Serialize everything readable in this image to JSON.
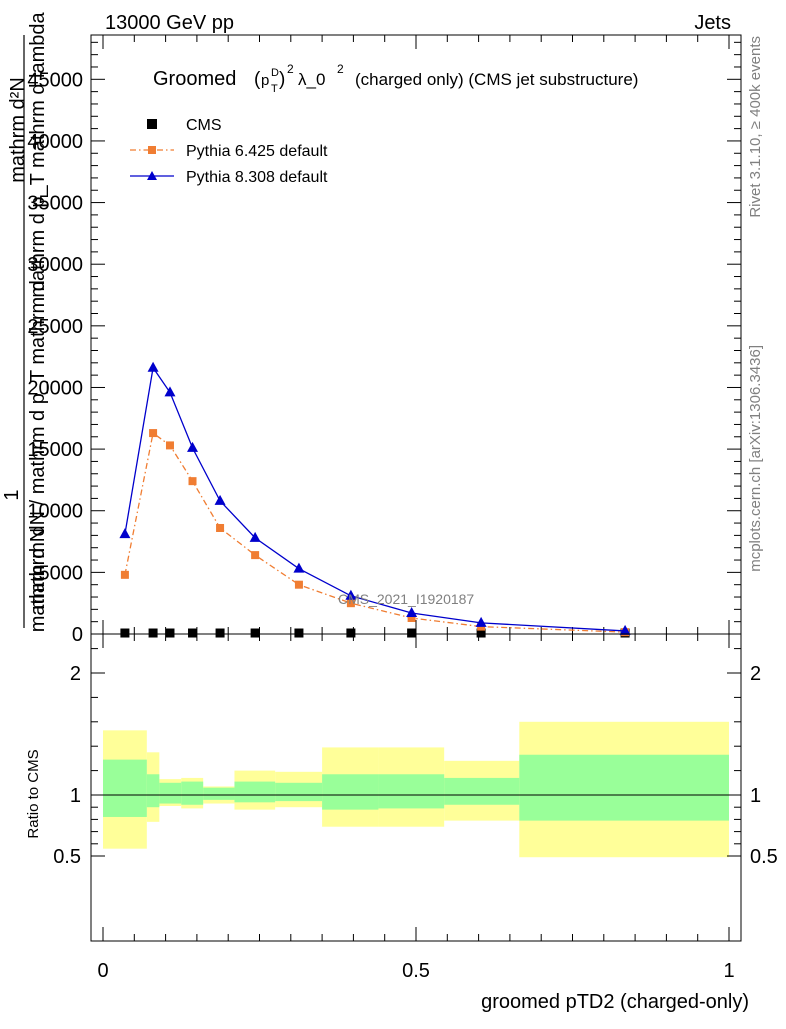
{
  "header": {
    "left": "13000 GeV pp",
    "right": "Jets"
  },
  "side": {
    "rivet": "Rivet 3.1.10, ≥ 400k events",
    "mcplots": "mcplots.cern.ch [arXiv:1306.3436]"
  },
  "plot": {
    "title_main": "Groomed",
    "title_rest": "λ_0",
    "title_tail": "(charged only) (CMS jet substructure)",
    "title_sup2": "2",
    "title_sup2b": "2",
    "title_p": "p",
    "title_T": "T",
    "title_D": "D",
    "watermark": "CMS_2021_I1920187",
    "ylabel_num": "mathrm d²N",
    "ylabel_num_b": "1",
    "ylabel_den_a": "mathrm d p_T mathrm d lambda",
    "ylabel_den_b": "mathrm dN / mathrm d p_T mathrm d",
    "ylabel_den_c": "mathrm d N",
    "ratio_ylabel": "Ratio to CMS",
    "xlabel": "groomed pTD2 (charged-only)"
  },
  "legend": [
    {
      "name": "CMS",
      "color": "#000000",
      "marker": "square"
    },
    {
      "name": "Pythia 6.425 default",
      "color": "#f07d32",
      "marker": "square"
    },
    {
      "name": "Pythia 8.308 default",
      "color": "#0000cc",
      "marker": "triangle"
    }
  ],
  "chart_data": [
    {
      "type": "line",
      "title": "Groomed (pTD)² λ_0² (charged only) (CMS jet substructure)",
      "xlim": [
        0,
        1
      ],
      "ylim": [
        0,
        49000
      ],
      "y_ticks": [
        0,
        5000,
        10000,
        15000,
        20000,
        25000,
        30000,
        35000,
        40000,
        45000
      ],
      "y_tick_labels": [
        "0",
        "5000",
        "10000",
        "15000",
        "20000",
        "25000",
        "30000",
        "35000",
        "40000",
        "45000"
      ],
      "series": [
        {
          "name": "CMS",
          "x": [
            0.035,
            0.08,
            0.107,
            0.143,
            0.187,
            0.243,
            0.313,
            0.396,
            0.493,
            0.604,
            0.834
          ],
          "values": [
            80,
            80,
            80,
            80,
            80,
            80,
            80,
            80,
            80,
            80,
            80
          ]
        },
        {
          "name": "Pythia 6.425 default",
          "x": [
            0.035,
            0.08,
            0.107,
            0.143,
            0.187,
            0.243,
            0.313,
            0.396,
            0.493,
            0.604,
            0.834
          ],
          "values": [
            4800,
            16300,
            15300,
            12400,
            8600,
            6400,
            4000,
            2500,
            1300,
            600,
            150
          ]
        },
        {
          "name": "Pythia 8.308 default",
          "x": [
            0.035,
            0.08,
            0.107,
            0.143,
            0.187,
            0.243,
            0.313,
            0.396,
            0.493,
            0.604,
            0.834
          ],
          "values": [
            8100,
            21600,
            19600,
            15100,
            10800,
            7800,
            5300,
            3100,
            1700,
            900,
            250
          ]
        }
      ]
    },
    {
      "type": "area",
      "ylabel": "Ratio to CMS",
      "ylim": [
        0.4,
        2.3
      ],
      "y_ticks": [
        0.5,
        1,
        2
      ],
      "y_tick_labels": [
        "0.5",
        "1",
        "2"
      ],
      "x_ticks": [
        0,
        0.5,
        1
      ],
      "x_tick_labels": [
        "0",
        "0.5",
        "1"
      ],
      "xlabel": "groomed pTD2 (charged-only)",
      "bin_edges": [
        0,
        0.07,
        0.09,
        0.125,
        0.16,
        0.21,
        0.275,
        0.35,
        0.44,
        0.545,
        0.665,
        1.0
      ],
      "bands_inner": [
        {
          "lo": 0.82,
          "hi": 1.29
        },
        {
          "lo": 0.9,
          "hi": 1.17
        },
        {
          "lo": 0.93,
          "hi": 1.1
        },
        {
          "lo": 0.92,
          "hi": 1.11
        },
        {
          "lo": 0.96,
          "hi": 1.06
        },
        {
          "lo": 0.94,
          "hi": 1.11
        },
        {
          "lo": 0.95,
          "hi": 1.1
        },
        {
          "lo": 0.88,
          "hi": 1.17
        },
        {
          "lo": 0.89,
          "hi": 1.17
        },
        {
          "lo": 0.92,
          "hi": 1.14
        },
        {
          "lo": 0.79,
          "hi": 1.33
        }
      ],
      "bands_outer": [
        {
          "lo": 0.56,
          "hi": 1.53
        },
        {
          "lo": 0.78,
          "hi": 1.35
        },
        {
          "lo": 0.91,
          "hi": 1.13
        },
        {
          "lo": 0.89,
          "hi": 1.14
        },
        {
          "lo": 0.93,
          "hi": 1.07
        },
        {
          "lo": 0.88,
          "hi": 1.2
        },
        {
          "lo": 0.9,
          "hi": 1.19
        },
        {
          "lo": 0.74,
          "hi": 1.39
        },
        {
          "lo": 0.74,
          "hi": 1.39
        },
        {
          "lo": 0.79,
          "hi": 1.28
        },
        {
          "lo": 0.49,
          "hi": 1.6
        }
      ],
      "band_colors": {
        "inner": "#99ff99",
        "outer": "#ffff99"
      }
    }
  ]
}
